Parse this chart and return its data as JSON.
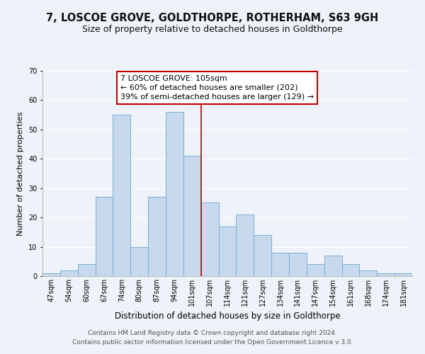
{
  "title": "7, LOSCOE GROVE, GOLDTHORPE, ROTHERHAM, S63 9GH",
  "subtitle": "Size of property relative to detached houses in Goldthorpe",
  "xlabel": "Distribution of detached houses by size in Goldthorpe",
  "ylabel": "Number of detached properties",
  "bar_labels": [
    "47sqm",
    "54sqm",
    "60sqm",
    "67sqm",
    "74sqm",
    "80sqm",
    "87sqm",
    "94sqm",
    "101sqm",
    "107sqm",
    "114sqm",
    "121sqm",
    "127sqm",
    "134sqm",
    "141sqm",
    "147sqm",
    "154sqm",
    "161sqm",
    "168sqm",
    "174sqm",
    "181sqm"
  ],
  "bar_values": [
    1,
    2,
    4,
    27,
    55,
    10,
    27,
    56,
    41,
    25,
    17,
    21,
    14,
    8,
    8,
    4,
    7,
    4,
    2,
    1,
    1
  ],
  "bar_color": "#c8d9ed",
  "bar_edge_color": "#7aafd4",
  "highlight_index": 8,
  "highlight_line_color": "#c00000",
  "ylim": [
    0,
    70
  ],
  "yticks": [
    0,
    10,
    20,
    30,
    40,
    50,
    60,
    70
  ],
  "annotation_title": "7 LOSCOE GROVE: 105sqm",
  "annotation_line1": "← 60% of detached houses are smaller (202)",
  "annotation_line2": "39% of semi-detached houses are larger (129) →",
  "annotation_box_color": "#ffffff",
  "annotation_box_edge_color": "#c00000",
  "footer_line1": "Contains HM Land Registry data © Crown copyright and database right 2024.",
  "footer_line2": "Contains public sector information licensed under the Open Government Licence v 3.0.",
  "background_color": "#eef2f9",
  "grid_color": "#ffffff",
  "title_fontsize": 10.5,
  "subtitle_fontsize": 9,
  "xlabel_fontsize": 8.5,
  "ylabel_fontsize": 8,
  "tick_fontsize": 7,
  "annotation_fontsize": 8,
  "footer_fontsize": 6.5
}
